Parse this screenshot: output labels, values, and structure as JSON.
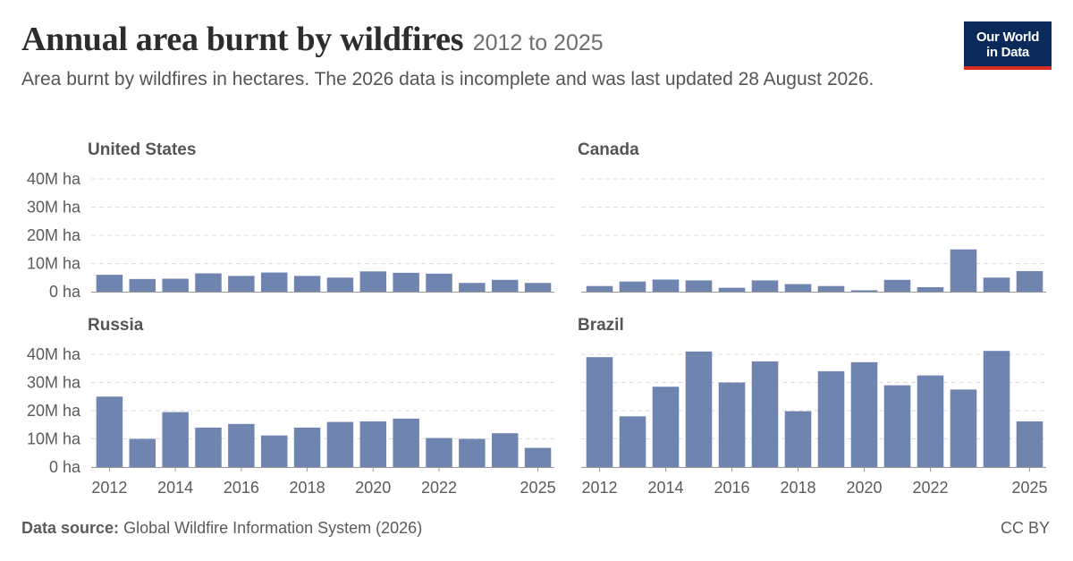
{
  "header": {
    "title": "Annual area burnt by wildfires",
    "title_range": "2012 to 2025",
    "subtitle": "Area burnt by wildfires in hectares. The 2026 data is incomplete and was last updated 28 August 2026."
  },
  "logo": {
    "line1": "Our World",
    "line2": "in Data"
  },
  "footer": {
    "source_label": "Data source:",
    "source_text": "Global Wildfire Information System (2026)",
    "license": "CC BY"
  },
  "colors": {
    "bar": "#6f85b0",
    "grid": "#dddddd",
    "baseline": "#999999"
  },
  "chart_data": [
    {
      "type": "bar",
      "title": "United States",
      "categories": [
        "2012",
        "2013",
        "2014",
        "2015",
        "2016",
        "2017",
        "2018",
        "2019",
        "2020",
        "2021",
        "2022",
        "2023",
        "2024",
        "2025"
      ],
      "values": [
        6.0,
        4.5,
        4.6,
        6.5,
        5.6,
        6.8,
        5.6,
        5.0,
        7.2,
        6.7,
        6.4,
        3.1,
        4.2,
        3.1
      ],
      "unit": "M ha",
      "ylim": [
        0,
        40
      ],
      "yticks": [
        "0 ha",
        "10M ha",
        "20M ha",
        "30M ha",
        "40M ha"
      ],
      "xtick_labels": [
        "2012",
        "2014",
        "2016",
        "2018",
        "2020",
        "2022",
        "2025"
      ],
      "grid": true
    },
    {
      "type": "bar",
      "title": "Canada",
      "categories": [
        "2012",
        "2013",
        "2014",
        "2015",
        "2016",
        "2017",
        "2018",
        "2019",
        "2020",
        "2021",
        "2022",
        "2023",
        "2024",
        "2025"
      ],
      "values": [
        2.0,
        3.6,
        4.3,
        4.0,
        1.4,
        4.0,
        2.7,
        2.0,
        0.5,
        4.2,
        1.6,
        15.0,
        5.0,
        7.3
      ],
      "unit": "M ha",
      "ylim": [
        0,
        40
      ],
      "yticks": [
        "0 ha",
        "10M ha",
        "20M ha",
        "30M ha",
        "40M ha"
      ],
      "xtick_labels": [
        "2012",
        "2014",
        "2016",
        "2018",
        "2020",
        "2022",
        "2025"
      ],
      "grid": true
    },
    {
      "type": "bar",
      "title": "Russia",
      "categories": [
        "2012",
        "2013",
        "2014",
        "2015",
        "2016",
        "2017",
        "2018",
        "2019",
        "2020",
        "2021",
        "2022",
        "2023",
        "2024",
        "2025"
      ],
      "values": [
        25.0,
        10.0,
        19.5,
        14.0,
        15.3,
        11.2,
        14.0,
        16.0,
        16.2,
        17.2,
        10.3,
        10.0,
        12.0,
        6.8
      ],
      "unit": "M ha",
      "ylim": [
        0,
        40
      ],
      "yticks": [
        "0 ha",
        "10M ha",
        "20M ha",
        "30M ha",
        "40M ha"
      ],
      "xtick_labels": [
        "2012",
        "2014",
        "2016",
        "2018",
        "2020",
        "2022",
        "2025"
      ],
      "grid": true
    },
    {
      "type": "bar",
      "title": "Brazil",
      "categories": [
        "2012",
        "2013",
        "2014",
        "2015",
        "2016",
        "2017",
        "2018",
        "2019",
        "2020",
        "2021",
        "2022",
        "2023",
        "2024",
        "2025"
      ],
      "values": [
        39.0,
        18.0,
        28.5,
        41.0,
        30.0,
        37.5,
        19.8,
        34.0,
        37.2,
        29.0,
        32.5,
        27.5,
        41.2,
        16.2
      ],
      "unit": "M ha",
      "ylim": [
        0,
        40
      ],
      "yticks": [
        "0 ha",
        "10M ha",
        "20M ha",
        "30M ha",
        "40M ha"
      ],
      "xtick_labels": [
        "2012",
        "2014",
        "2016",
        "2018",
        "2020",
        "2022",
        "2025"
      ],
      "grid": true
    }
  ]
}
